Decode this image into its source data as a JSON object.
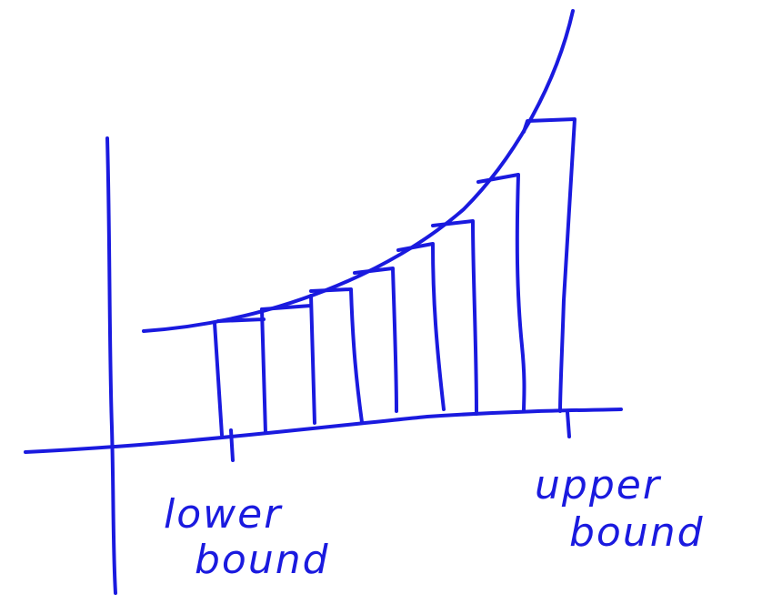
{
  "ink_color": "#1a1adf",
  "background_color": "#ffffff",
  "labels": {
    "lower_bound_line1": "lower",
    "lower_bound_line2": "bound",
    "upper_bound_line1": "upper",
    "upper_bound_line2": "bound"
  },
  "rectangles": {
    "count": 8
  }
}
